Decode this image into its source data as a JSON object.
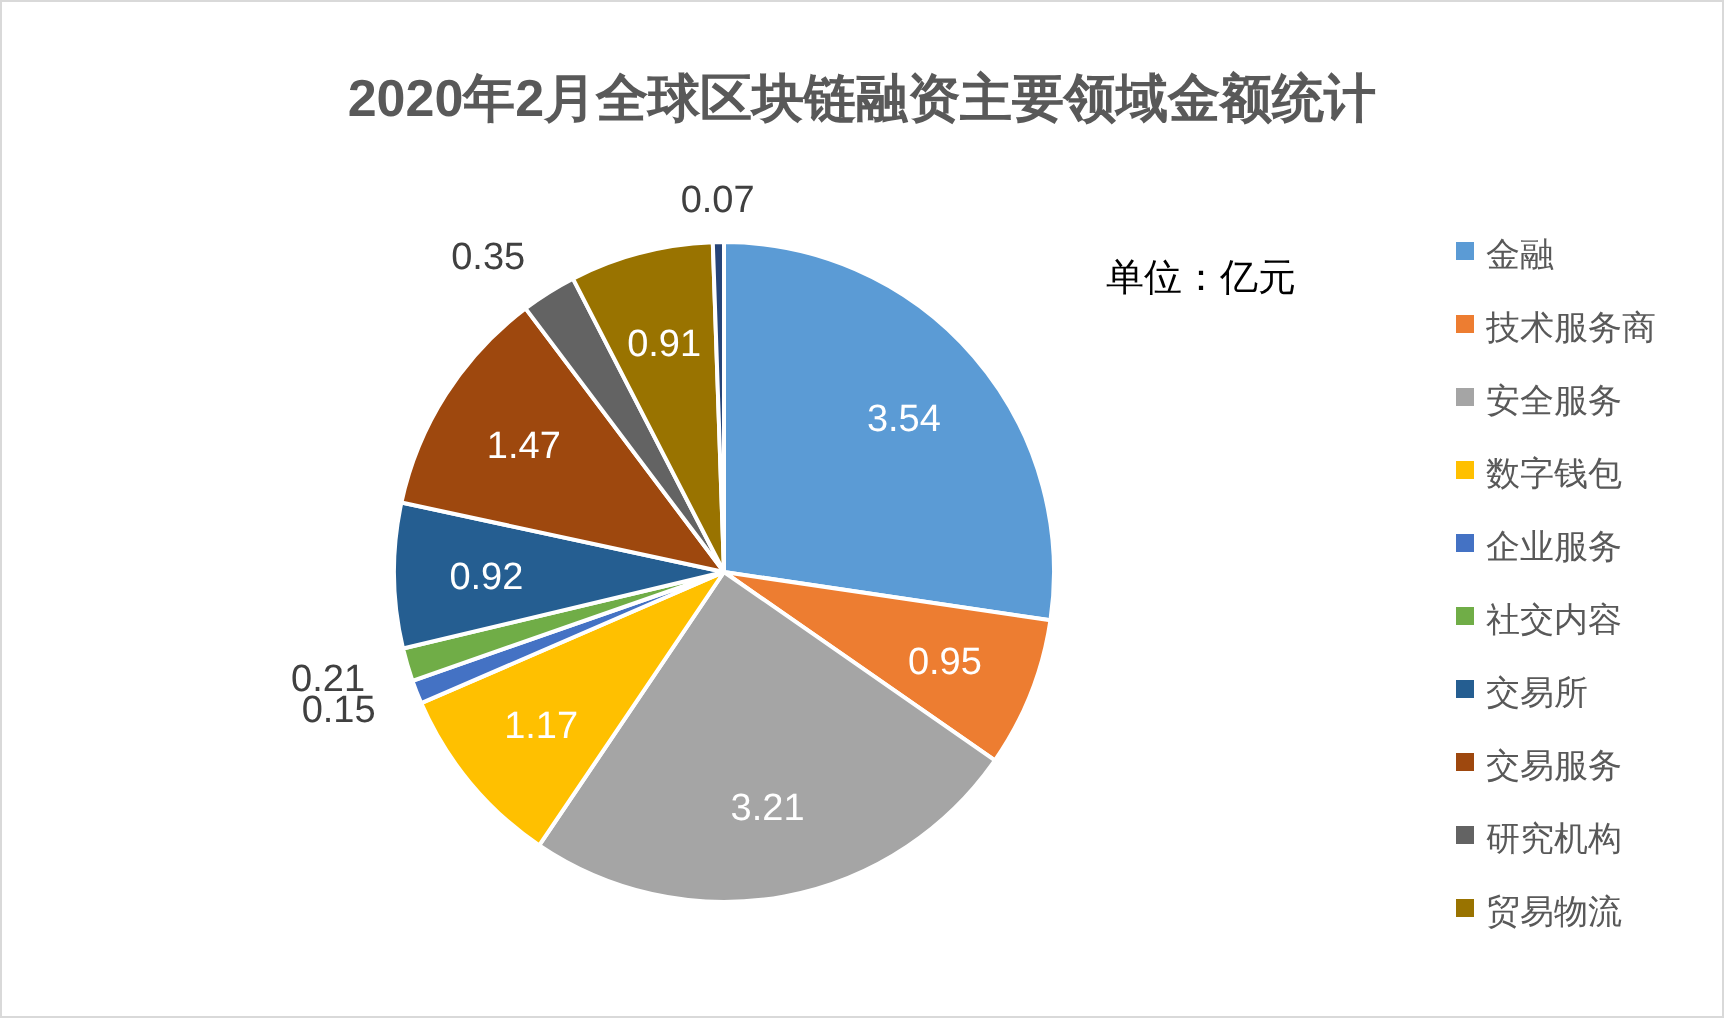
{
  "chart_data": {
    "type": "pie",
    "title": "2020年2月全球区块链融资主要领域金额统计",
    "annotations": [
      "单位：亿元"
    ],
    "categories": [
      "金融",
      "技术服务商",
      "安全服务",
      "数字钱包",
      "企业服务",
      "社交内容",
      "交易所",
      "交易服务",
      "研究机构",
      "贸易物流",
      null
    ],
    "values": [
      3.54,
      0.95,
      3.21,
      1.17,
      0.15,
      0.21,
      0.92,
      1.47,
      0.35,
      0.91,
      0.07
    ],
    "colors": [
      "#5b9bd5",
      "#ed7d31",
      "#a5a5a5",
      "#ffc000",
      "#4472c4",
      "#70ad47",
      "#255e91",
      "#9e480e",
      "#636363",
      "#997300",
      "#264478"
    ],
    "data_labels": true,
    "legend": "right"
  }
}
